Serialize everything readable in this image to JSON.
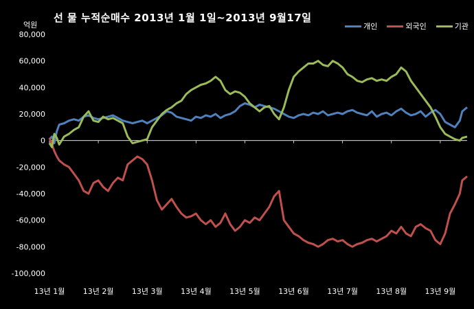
{
  "chart_data": {
    "type": "line",
    "title": "선 물 누적순매수 2013년 1월 1일~2013년 9월17일",
    "unit_label": "억원",
    "ylim": [
      -100000,
      80000
    ],
    "y_ticks": [
      80000,
      60000,
      40000,
      20000,
      0,
      -20000,
      -40000,
      -60000,
      -80000,
      -100000
    ],
    "y_tick_labels": [
      "80,000",
      "60,000",
      "40,000",
      "20,000",
      "0",
      "-20,000",
      "-40,000",
      "-60,000",
      "-80,000",
      "-100,000"
    ],
    "x_tick_labels": [
      "13년 1월",
      "13년 2월",
      "13년 3월",
      "13년 4월",
      "13년 5월",
      "13년 6월",
      "13년 7월",
      "13년 8월",
      "13년 9월"
    ],
    "x_tick_months": [
      1,
      2,
      3,
      4,
      5,
      6,
      7,
      8,
      9
    ],
    "legend_position": "top-right",
    "grid": false,
    "x": [
      1.0,
      1.05,
      1.1,
      1.15,
      1.2,
      1.3,
      1.4,
      1.5,
      1.6,
      1.7,
      1.8,
      1.9,
      2.0,
      2.1,
      2.2,
      2.3,
      2.4,
      2.5,
      2.6,
      2.7,
      2.8,
      2.9,
      3.0,
      3.1,
      3.2,
      3.3,
      3.4,
      3.5,
      3.6,
      3.7,
      3.8,
      3.9,
      4.0,
      4.1,
      4.2,
      4.3,
      4.4,
      4.5,
      4.6,
      4.7,
      4.8,
      4.9,
      5.0,
      5.1,
      5.2,
      5.3,
      5.4,
      5.5,
      5.6,
      5.7,
      5.8,
      5.9,
      6.0,
      6.1,
      6.2,
      6.3,
      6.4,
      6.5,
      6.6,
      6.7,
      6.8,
      6.9,
      7.0,
      7.1,
      7.2,
      7.3,
      7.4,
      7.5,
      7.6,
      7.7,
      7.8,
      7.9,
      8.0,
      8.1,
      8.2,
      8.3,
      8.4,
      8.5,
      8.6,
      8.7,
      8.8,
      8.9,
      9.0,
      9.1,
      9.2,
      9.3,
      9.4,
      9.45,
      9.55
    ],
    "series": [
      {
        "name": "개인",
        "color": "#4F81BD",
        "values": [
          1000,
          3000,
          -2000,
          7000,
          12000,
          13000,
          15000,
          16000,
          15000,
          18000,
          19000,
          17000,
          16000,
          17000,
          18000,
          19000,
          17000,
          15000,
          14000,
          13000,
          14000,
          15000,
          13000,
          15000,
          17000,
          19000,
          22000,
          21000,
          18000,
          17000,
          16000,
          15000,
          18000,
          17000,
          19000,
          18000,
          20000,
          17000,
          19000,
          20000,
          22000,
          26000,
          28000,
          27000,
          25000,
          27000,
          26000,
          25000,
          24000,
          22000,
          20000,
          18000,
          17000,
          19000,
          20000,
          19000,
          21000,
          20000,
          22000,
          19000,
          20000,
          21000,
          20000,
          22000,
          23000,
          21000,
          20000,
          19000,
          22000,
          18000,
          20000,
          21000,
          19000,
          22000,
          24000,
          21000,
          19000,
          20000,
          22000,
          18000,
          21000,
          23000,
          20000,
          14000,
          12000,
          10000,
          15000,
          22000,
          25000
        ]
      },
      {
        "name": "외국인",
        "color": "#C0504D",
        "values": [
          2000,
          -3000,
          -8000,
          -12000,
          -15000,
          -18000,
          -20000,
          -25000,
          -30000,
          -38000,
          -40000,
          -32000,
          -30000,
          -35000,
          -38000,
          -32000,
          -28000,
          -30000,
          -18000,
          -15000,
          -12000,
          -14000,
          -18000,
          -30000,
          -45000,
          -52000,
          -48000,
          -44000,
          -50000,
          -55000,
          -58000,
          -57000,
          -55000,
          -60000,
          -63000,
          -60000,
          -65000,
          -62000,
          -55000,
          -63000,
          -68000,
          -65000,
          -60000,
          -62000,
          -58000,
          -60000,
          -55000,
          -50000,
          -42000,
          -38000,
          -60000,
          -65000,
          -70000,
          -72000,
          -75000,
          -77000,
          -78000,
          -80000,
          -78000,
          -75000,
          -74000,
          -76000,
          -75000,
          -78000,
          -80000,
          -78000,
          -77000,
          -75000,
          -74000,
          -76000,
          -74000,
          -72000,
          -68000,
          -70000,
          -65000,
          -70000,
          -72000,
          -65000,
          -63000,
          -66000,
          -68000,
          -75000,
          -78000,
          -70000,
          -55000,
          -48000,
          -40000,
          -30000,
          -27000
        ]
      },
      {
        "name": "기관",
        "color": "#9BBB59",
        "values": [
          -2000,
          -5000,
          5000,
          2000,
          -3000,
          3000,
          5000,
          8000,
          10000,
          18000,
          22000,
          15000,
          14000,
          18000,
          16000,
          17000,
          15000,
          13000,
          3000,
          -2000,
          -1000,
          0,
          1000,
          10000,
          15000,
          20000,
          23000,
          25000,
          28000,
          30000,
          35000,
          38000,
          40000,
          42000,
          43000,
          45000,
          48000,
          45000,
          38000,
          35000,
          37000,
          36000,
          33000,
          28000,
          25000,
          22000,
          25000,
          26000,
          20000,
          16000,
          25000,
          38000,
          48000,
          52000,
          55000,
          58000,
          58000,
          60000,
          57000,
          56000,
          60000,
          58000,
          55000,
          50000,
          48000,
          45000,
          44000,
          46000,
          47000,
          45000,
          46000,
          45000,
          48000,
          50000,
          55000,
          52000,
          45000,
          40000,
          35000,
          30000,
          25000,
          18000,
          10000,
          5000,
          3000,
          1000,
          0,
          2000,
          3000
        ]
      }
    ]
  }
}
